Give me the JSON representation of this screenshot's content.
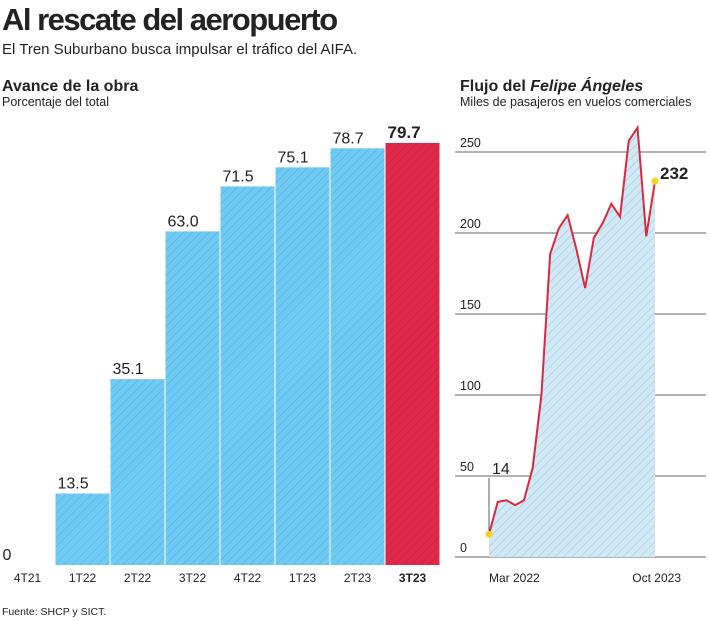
{
  "header": {
    "title": "Al rescate del aeropuerto",
    "subtitle": "El Tren Suburbano busca impulsar el tráfico del AIFA."
  },
  "chart_data": [
    {
      "type": "bar",
      "title": "Avance de la obra",
      "subtitle": "Porcentaje del total",
      "categories": [
        "4T21",
        "1T22",
        "2T22",
        "3T22",
        "4T22",
        "1T23",
        "2T23",
        "3T23"
      ],
      "values": [
        0,
        13.5,
        35.1,
        63.0,
        71.5,
        75.1,
        78.7,
        79.7
      ],
      "value_labels": [
        "0",
        "13.5",
        "35.1",
        "63.0",
        "71.5",
        "75.1",
        "78.7",
        "79.7"
      ],
      "colors": [
        "#6ecbf5",
        "#6ecbf5",
        "#6ecbf5",
        "#6ecbf5",
        "#6ecbf5",
        "#6ecbf5",
        "#6ecbf5",
        "#e0294a"
      ],
      "highlight_color": "#e0294a",
      "ylim": [
        0,
        80
      ]
    },
    {
      "type": "line",
      "title": [
        "Flujo del",
        "Felipe Ángeles"
      ],
      "subtitle": "Miles de pasajeros en vuelos comerciales",
      "x": [
        "Mar 2022",
        null,
        null,
        null,
        null,
        null,
        null,
        null,
        null,
        null,
        null,
        null,
        null,
        null,
        null,
        null,
        null,
        null,
        null,
        "Oct 2023"
      ],
      "values": [
        14,
        34,
        35,
        32,
        35,
        55,
        100,
        187,
        203,
        211,
        190,
        166,
        197,
        206,
        218,
        210,
        257,
        265,
        198,
        232
      ],
      "color": "#d9293f",
      "area_color": "#cfe9f7",
      "ylim": [
        0,
        270
      ],
      "yticks": [
        0,
        50,
        100,
        150,
        200,
        250
      ],
      "grid": true
    }
  ],
  "footer": {
    "source": "Fuente: SHCP y SICT."
  }
}
